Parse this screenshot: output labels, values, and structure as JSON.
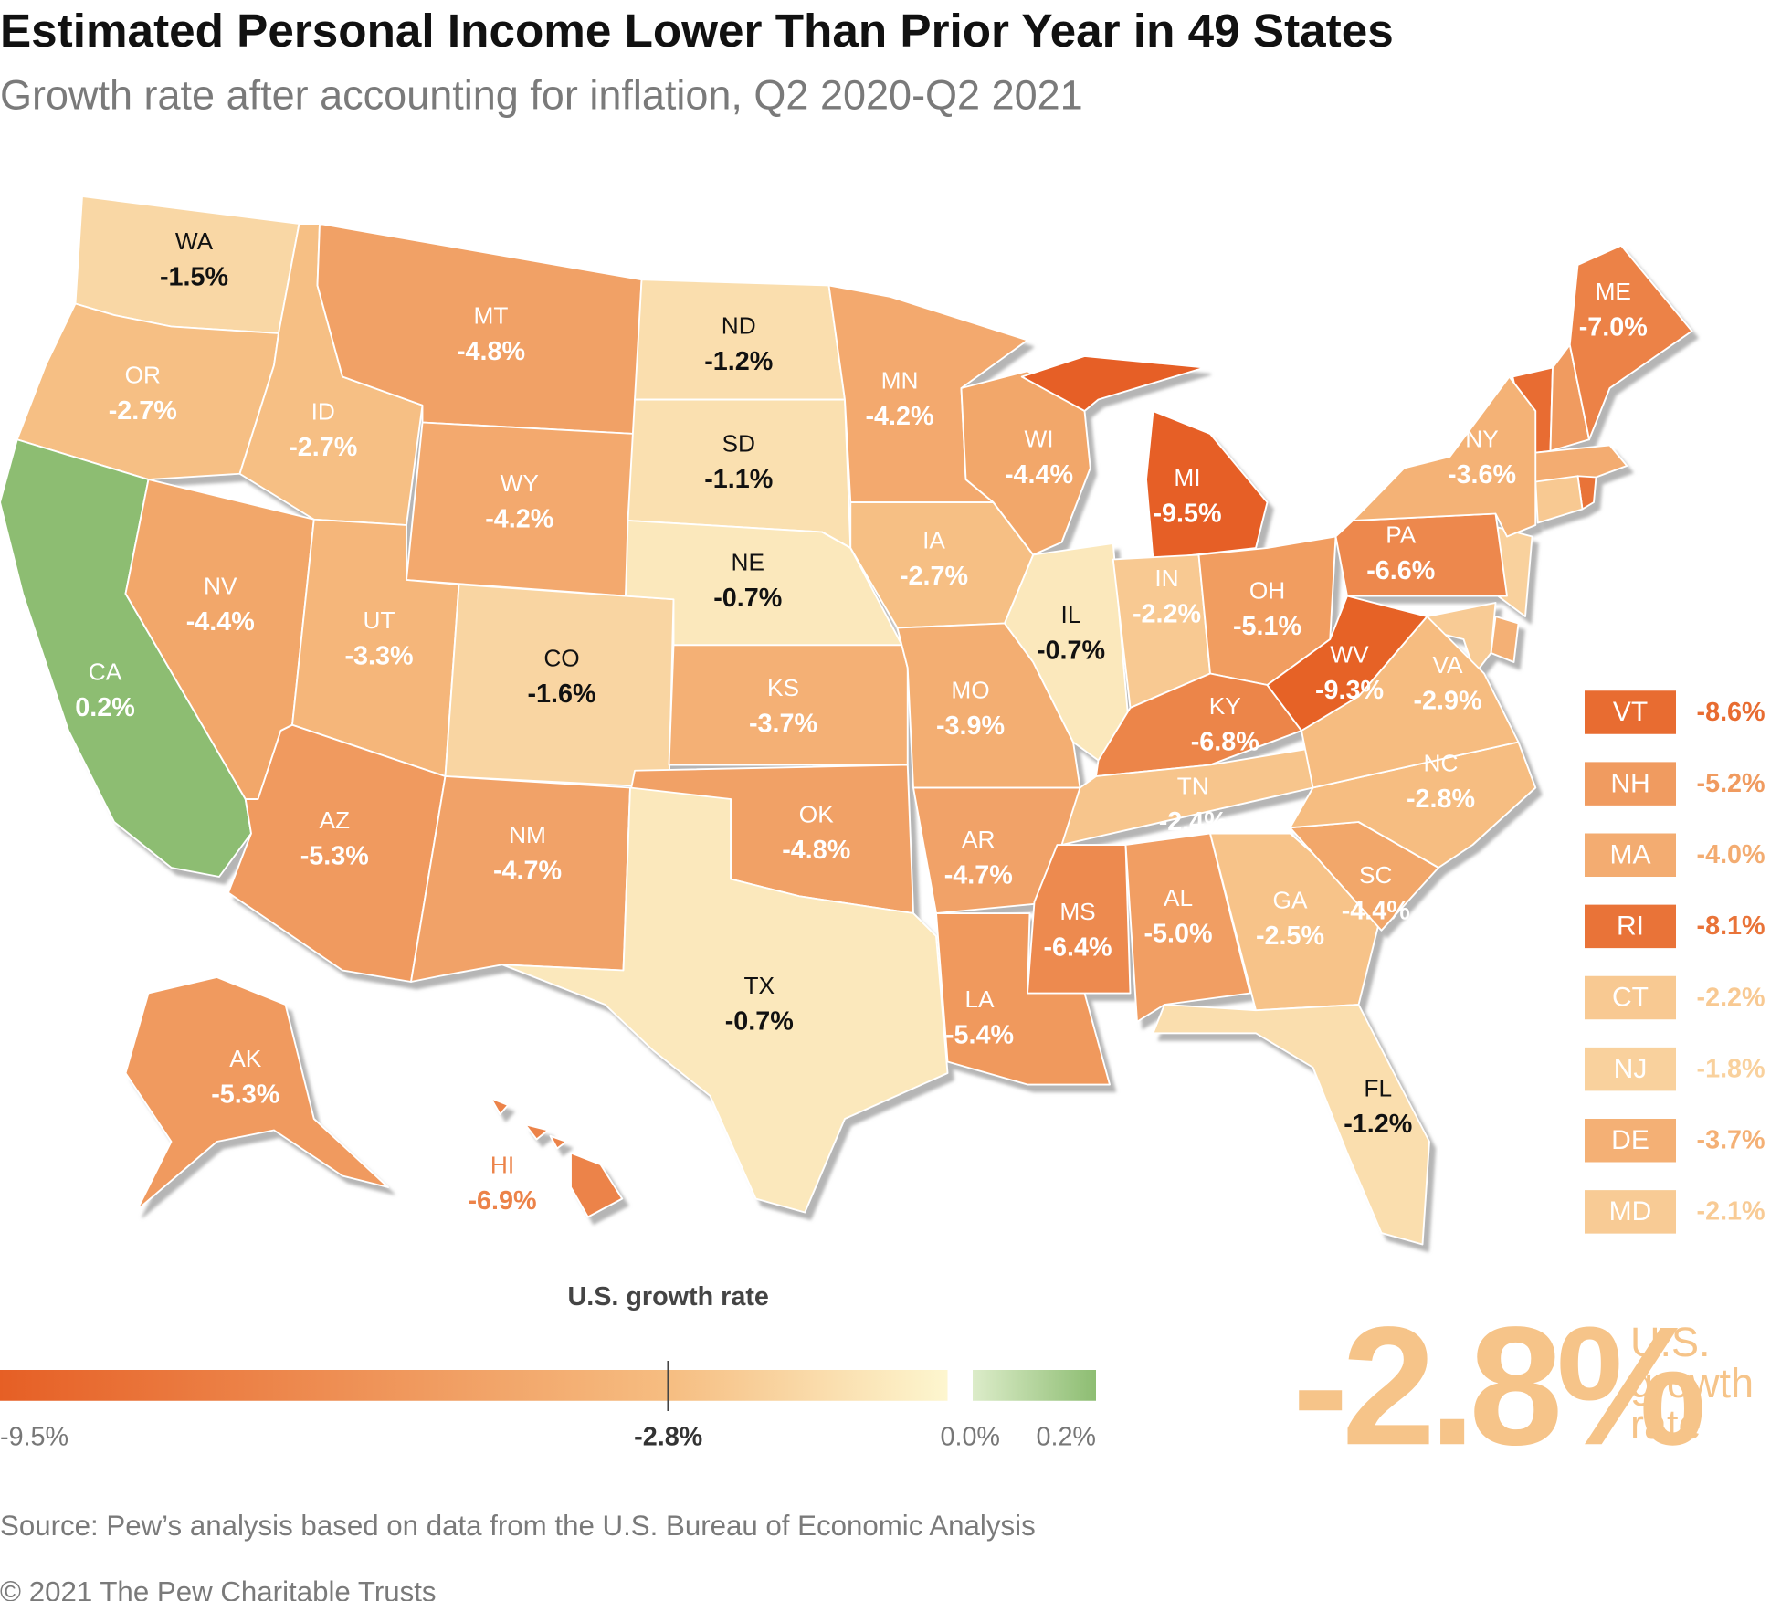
{
  "chart_data": {
    "type": "map",
    "title": "Estimated Personal Income Lower Than Prior Year in 49 States",
    "subtitle": "Growth rate after accounting for inflation, Q2 2020-Q2 2021",
    "states": [
      {
        "name": "VT",
        "value": -8.6,
        "label": "-8.6%",
        "callout": true
      },
      {
        "name": "NH",
        "value": -5.2,
        "label": "-5.2%",
        "callout": true
      },
      {
        "name": "MA",
        "value": -4.0,
        "label": "-4.0%",
        "callout": true
      },
      {
        "name": "RI",
        "value": -8.1,
        "label": "-8.1%",
        "callout": true
      },
      {
        "name": "CT",
        "value": -2.2,
        "label": "-2.2%",
        "callout": true
      },
      {
        "name": "NJ",
        "value": -1.8,
        "label": "-1.8%",
        "callout": true
      },
      {
        "name": "DE",
        "value": -3.7,
        "label": "-3.7%",
        "callout": true
      },
      {
        "name": "MD",
        "value": -2.1,
        "label": "-2.1%",
        "callout": true
      },
      {
        "name": "WA",
        "value": -1.5,
        "label": "-1.5%"
      },
      {
        "name": "OR",
        "value": -2.7,
        "label": "-2.7%"
      },
      {
        "name": "CA",
        "value": 0.2,
        "label": "0.2%"
      },
      {
        "name": "NV",
        "value": -4.4,
        "label": "-4.4%"
      },
      {
        "name": "ID",
        "value": -2.7,
        "label": "-2.7%"
      },
      {
        "name": "MT",
        "value": -4.8,
        "label": "-4.8%"
      },
      {
        "name": "WY",
        "value": -4.2,
        "label": "-4.2%"
      },
      {
        "name": "UT",
        "value": -3.3,
        "label": "-3.3%"
      },
      {
        "name": "CO",
        "value": -1.6,
        "label": "-1.6%"
      },
      {
        "name": "AZ",
        "value": -5.3,
        "label": "-5.3%"
      },
      {
        "name": "NM",
        "value": -4.7,
        "label": "-4.7%"
      },
      {
        "name": "ND",
        "value": -1.2,
        "label": "-1.2%"
      },
      {
        "name": "SD",
        "value": -1.1,
        "label": "-1.1%"
      },
      {
        "name": "NE",
        "value": -0.7,
        "label": "-0.7%"
      },
      {
        "name": "KS",
        "value": -3.7,
        "label": "-3.7%"
      },
      {
        "name": "OK",
        "value": -4.8,
        "label": "-4.8%"
      },
      {
        "name": "TX",
        "value": -0.7,
        "label": "-0.7%"
      },
      {
        "name": "MN",
        "value": -4.2,
        "label": "-4.2%"
      },
      {
        "name": "IA",
        "value": -2.7,
        "label": "-2.7%"
      },
      {
        "name": "MO",
        "value": -3.9,
        "label": "-3.9%"
      },
      {
        "name": "AR",
        "value": -4.7,
        "label": "-4.7%"
      },
      {
        "name": "LA",
        "value": -5.4,
        "label": "-5.4%"
      },
      {
        "name": "WI",
        "value": -4.4,
        "label": "-4.4%"
      },
      {
        "name": "IL",
        "value": -0.7,
        "label": "-0.7%"
      },
      {
        "name": "MI",
        "value": -9.5,
        "label": "-9.5%"
      },
      {
        "name": "IN",
        "value": -2.2,
        "label": "-2.2%"
      },
      {
        "name": "OH",
        "value": -5.1,
        "label": "-5.1%"
      },
      {
        "name": "KY",
        "value": -6.8,
        "label": "-6.8%"
      },
      {
        "name": "TN",
        "value": -2.4,
        "label": "-2.4%"
      },
      {
        "name": "MS",
        "value": -6.4,
        "label": "-6.4%"
      },
      {
        "name": "AL",
        "value": -5.0,
        "label": "-5.0%"
      },
      {
        "name": "GA",
        "value": -2.5,
        "label": "-2.5%"
      },
      {
        "name": "FL",
        "value": -1.2,
        "label": "-1.2%"
      },
      {
        "name": "SC",
        "value": -4.4,
        "label": "-4.4%"
      },
      {
        "name": "NC",
        "value": -2.8,
        "label": "-2.8%"
      },
      {
        "name": "VA",
        "value": -2.9,
        "label": "-2.9%"
      },
      {
        "name": "WV",
        "value": -9.3,
        "label": "-9.3%"
      },
      {
        "name": "PA",
        "value": -6.6,
        "label": "-6.6%"
      },
      {
        "name": "NY",
        "value": -3.6,
        "label": "-3.6%"
      },
      {
        "name": "ME",
        "value": -7.0,
        "label": "-7.0%"
      },
      {
        "name": "AK",
        "value": -5.3,
        "label": "-5.3%"
      },
      {
        "name": "HI",
        "value": -6.9,
        "label": "-6.9%"
      }
    ],
    "negative_colors": [
      "#e65f25",
      "#f6bd81",
      "#fdf6cf"
    ],
    "positive_colors": [
      "#dcecc9",
      "#8dbd72"
    ],
    "colorbar_ticks": [
      {
        "value": -9.5,
        "label": "-9.5%"
      },
      {
        "value": -2.8,
        "label": "-2.8%"
      },
      {
        "value": 0,
        "label": "0.0%"
      },
      {
        "value": 0.2,
        "label": "0.2%"
      }
    ],
    "us_growth": {
      "label": "U.S. growth rate",
      "value": -2.8,
      "value_label": "-2.8%"
    },
    "source": "Source: Pew’s analysis based on data from the U.S. Bureau of Economic Analysis",
    "copyright": "© 2021 The Pew Charitable Trusts"
  }
}
